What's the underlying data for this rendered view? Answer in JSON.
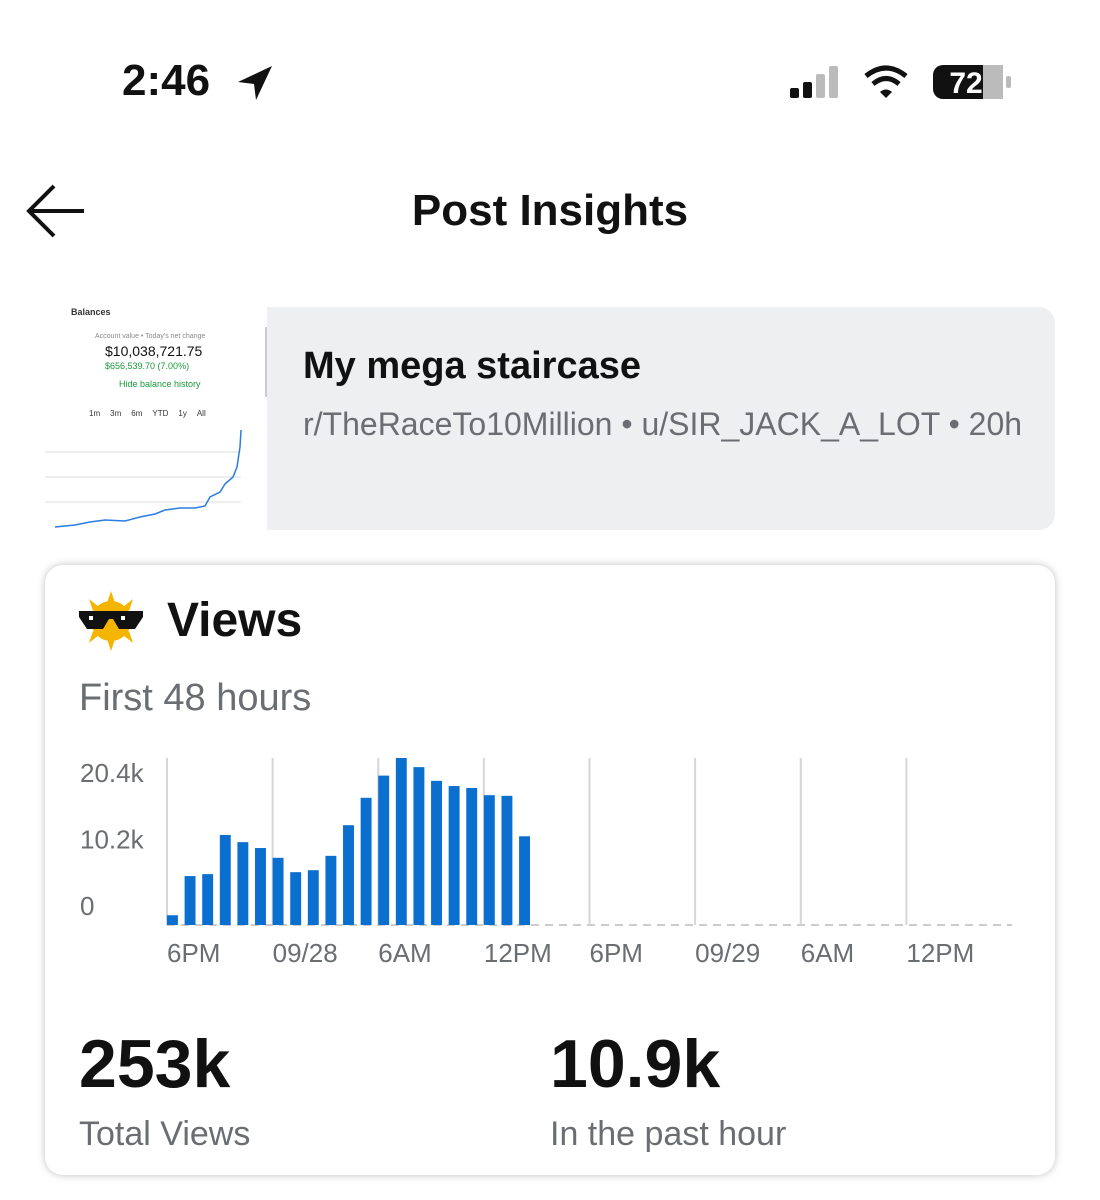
{
  "status_bar": {
    "time": "2:46",
    "battery": "72"
  },
  "header": {
    "title": "Post Insights"
  },
  "post": {
    "thumbnail": {
      "title": "Balances",
      "caption": "Account value • Today's net change",
      "balance": "$10,038,721.75",
      "change": "$656,539.70 (7.00%)",
      "toggle": "Hide balance history",
      "ranges": [
        "1m",
        "3m",
        "6m",
        "YTD",
        "1y",
        "All"
      ]
    },
    "title": "My mega staircase",
    "meta": "r/TheRaceTo10Million • u/SIR_JACK_A_LOT • 20h"
  },
  "views": {
    "title": "Views",
    "subtitle": "First 48 hours",
    "stats": [
      {
        "value": "253k",
        "label": "Total Views"
      },
      {
        "value": "10.9k",
        "label": "In the past hour"
      }
    ]
  },
  "chart_data": {
    "type": "bar",
    "categories": [
      "6PM",
      null,
      null,
      null,
      null,
      null,
      "09/28",
      null,
      null,
      null,
      null,
      null,
      "6AM",
      null,
      null,
      null,
      null,
      null,
      "12PM",
      null,
      null,
      null,
      null,
      null,
      "6PM",
      null,
      null,
      null,
      null,
      null,
      "09/29",
      null,
      null,
      null,
      null,
      null,
      "6AM",
      null,
      null,
      null,
      null,
      null,
      "12PM",
      null,
      null,
      null,
      null,
      null
    ],
    "values": [
      1500,
      7500,
      7800,
      13800,
      12700,
      11800,
      10300,
      8100,
      8400,
      10600,
      15300,
      19500,
      22900,
      25600,
      24200,
      22100,
      21300,
      21000,
      19900,
      19800,
      13600,
      null,
      null,
      null,
      null,
      null,
      null,
      null,
      null,
      null,
      null,
      null,
      null,
      null,
      null,
      null,
      null,
      null,
      null,
      null,
      null,
      null,
      null,
      null,
      null,
      null,
      null,
      null
    ],
    "color": "#0b6fcf",
    "ylim": [
      0,
      25600
    ],
    "yticks": [
      0,
      {
        "value": 10200,
        "label": "10.2k"
      },
      {
        "value": 20400,
        "label": "20.4k"
      }
    ],
    "grid": true
  }
}
